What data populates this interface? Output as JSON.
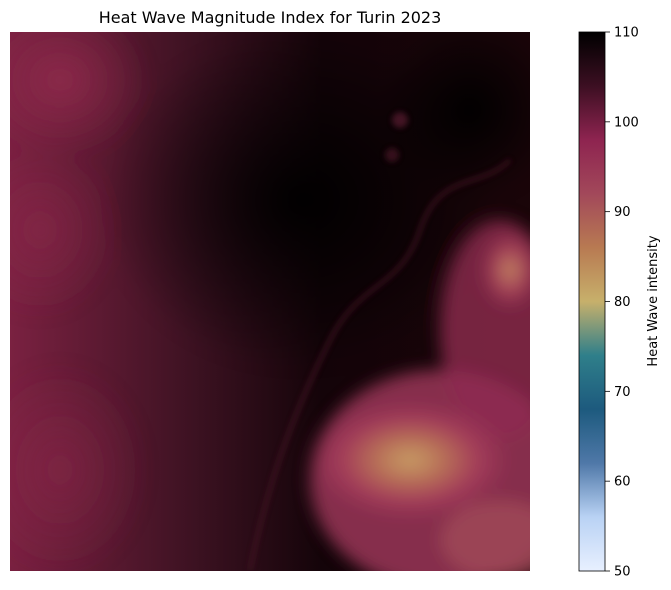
{
  "chart_data": {
    "type": "heatmap",
    "title": "Heat Wave Magnitude Index for Turin 2023",
    "colorbar": {
      "label": "Heat Wave intensity",
      "range": [
        50,
        110
      ],
      "ticks": [
        50,
        60,
        70,
        80,
        90,
        100,
        110
      ],
      "tick_labels": [
        "50",
        "60",
        "70",
        "80",
        "90",
        "100",
        "110"
      ],
      "colormap": [
        "#e8f0ff",
        "#b9d2f4",
        "#4f78a8",
        "#1d5a7e",
        "#2f7f8a",
        "#c7b06b",
        "#b87a52",
        "#a2485a",
        "#8e2450",
        "#3c0f22",
        "#000000"
      ]
    },
    "axes": {
      "visible": false
    },
    "field_description_levels": {
      "background_west": 100,
      "center_dark": 108,
      "southeast_hot_spot": 80,
      "east_edge_spot": 86
    }
  }
}
